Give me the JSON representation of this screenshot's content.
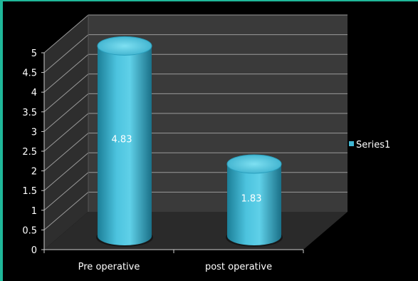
{
  "chart_data": {
    "type": "bar",
    "style": "3d-cylinder",
    "categories": [
      "Pre operative",
      "post operative"
    ],
    "series": [
      {
        "name": "Series1",
        "values": [
          4.83,
          1.83
        ],
        "color": "#3fb6d2"
      }
    ],
    "data_labels": [
      "4.83",
      "1.83"
    ],
    "ylim": [
      0,
      5
    ],
    "yticks": [
      "0",
      "0.5",
      "1",
      "1.5",
      "2",
      "2.5",
      "3",
      "3.5",
      "4",
      "4.5",
      "5"
    ],
    "ytick_values": [
      0,
      0.5,
      1,
      1.5,
      2,
      2.5,
      3,
      3.5,
      4,
      4.5,
      5
    ],
    "grid": true,
    "legend_position": "right",
    "title": "",
    "xlabel": "",
    "ylabel": ""
  },
  "colors": {
    "background": "#000000",
    "back_wall": "#3a3a3a",
    "side_wall": "#2e2e2e",
    "floor": "#2a2a2a",
    "gridline": "#9a9a9a",
    "bar": "#3fb6d2",
    "frame": "#1fb89a"
  }
}
